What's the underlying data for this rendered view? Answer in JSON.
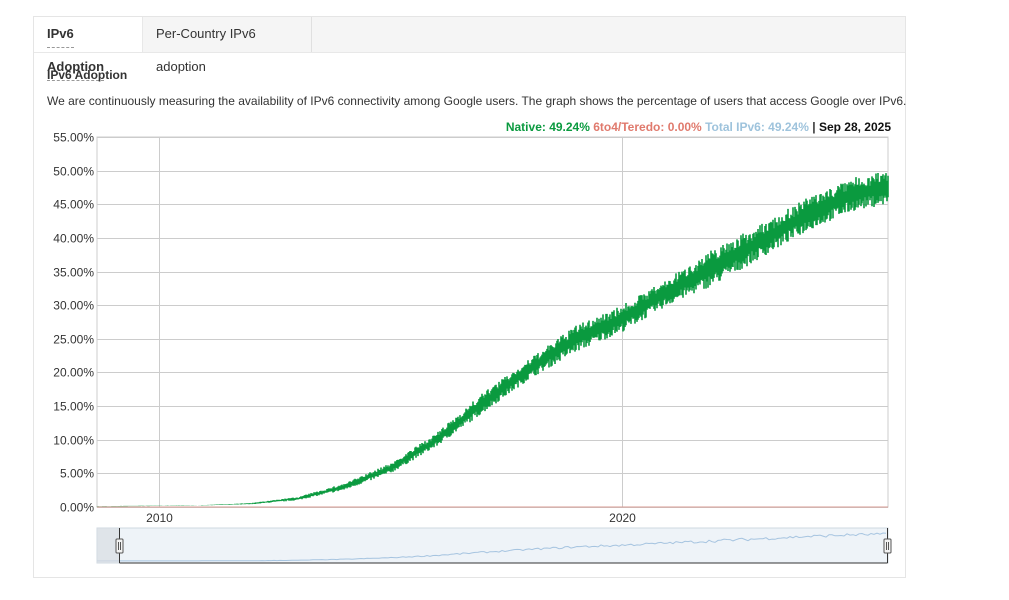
{
  "tabs": [
    {
      "label": "IPv6 Adoption",
      "active": true
    },
    {
      "label": "Per-Country IPv6 adoption",
      "active": false
    }
  ],
  "section": {
    "heading": "IPv6 Adoption",
    "description": "We are continuously measuring the availability of IPv6 connectivity among Google users. The graph shows the percentage of users that access Google over IPv6."
  },
  "legend": {
    "native_label": "Native: 49.24%",
    "teredo_label": "6to4/Teredo: 0.00%",
    "total_label": "Total IPv6: 49.24%",
    "separator": "|",
    "date": "Sep 28, 2025"
  },
  "colors": {
    "native": "#0a9a3f",
    "teredo": "#e07a6d",
    "total": "#9ec3dc",
    "grid": "#cccccc",
    "navigator_line": "#a6c4e0"
  },
  "chart_data": {
    "type": "area",
    "title": "",
    "xlabel": "",
    "ylabel": "",
    "ylim": [
      0,
      55
    ],
    "y_tick_labels": [
      "0.00%",
      "5.00%",
      "10.00%",
      "15.00%",
      "20.00%",
      "25.00%",
      "30.00%",
      "35.00%",
      "40.00%",
      "45.00%",
      "50.00%",
      "55.00%"
    ],
    "x_tick_labels": [
      "2010",
      "2020"
    ],
    "xlim": [
      "2008-09-01",
      "2025-09-28"
    ],
    "grid": true,
    "series": [
      {
        "name": "Native",
        "x": [
          "2008-09-01",
          "2009-01-01",
          "2010-01-01",
          "2011-01-01",
          "2012-01-01",
          "2013-01-01",
          "2014-01-01",
          "2015-01-01",
          "2016-01-01",
          "2017-01-01",
          "2018-01-01",
          "2019-01-01",
          "2020-01-01",
          "2021-01-01",
          "2022-01-01",
          "2023-01-01",
          "2024-01-01",
          "2025-01-01",
          "2025-09-28"
        ],
        "low": [
          0.1,
          0.1,
          0.15,
          0.25,
          0.4,
          1.0,
          2.5,
          5.0,
          9.0,
          14.0,
          19.0,
          23.0,
          26.0,
          30.0,
          33.0,
          37.0,
          41.0,
          44.0,
          45.0
        ],
        "high": [
          0.15,
          0.15,
          0.2,
          0.3,
          0.6,
          1.5,
          3.5,
          6.5,
          11.0,
          17.0,
          22.0,
          27.0,
          30.0,
          34.0,
          38.5,
          42.0,
          46.0,
          49.0,
          50.0
        ]
      },
      {
        "name": "6to4/Teredo",
        "x": [
          "2008-09-01",
          "2025-09-28"
        ],
        "values": [
          0.0,
          0.0
        ]
      }
    ]
  }
}
